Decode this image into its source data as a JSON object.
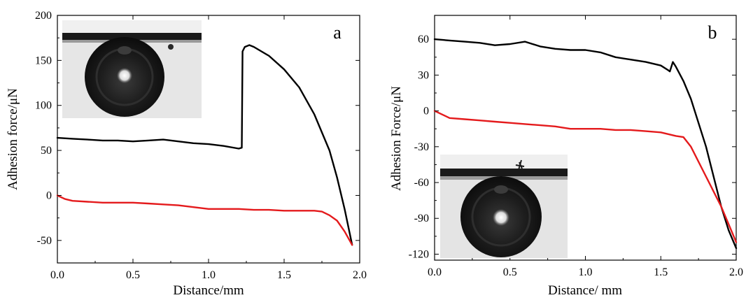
{
  "chart_data": [
    {
      "type": "line",
      "panel_label": "a",
      "xlabel": "Distance/mm",
      "ylabel": "Adhesion force/μN",
      "xlim": [
        0.0,
        2.0
      ],
      "ylim": [
        -75,
        200
      ],
      "xticks": [
        0.0,
        0.5,
        1.0,
        1.5,
        2.0
      ],
      "xtick_labels": [
        "0.0",
        "0.5",
        "1.0",
        "1.5",
        "2.0"
      ],
      "yticks": [
        -50,
        0,
        50,
        100,
        150,
        200
      ],
      "ytick_labels": [
        "-50",
        "0",
        "50",
        "100",
        "150",
        "200"
      ],
      "series": [
        {
          "color": "#000000",
          "x": [
            0.0,
            0.1,
            0.2,
            0.3,
            0.4,
            0.5,
            0.6,
            0.7,
            0.8,
            0.9,
            1.0,
            1.1,
            1.2,
            1.22,
            1.225,
            1.24,
            1.27,
            1.3,
            1.4,
            1.5,
            1.6,
            1.7,
            1.8,
            1.85,
            1.9,
            1.95
          ],
          "y": [
            64,
            63,
            62,
            61,
            61,
            60,
            61,
            62,
            60,
            58,
            57,
            55,
            52,
            53,
            160,
            165,
            167,
            165,
            155,
            140,
            120,
            90,
            50,
            20,
            -15,
            -55
          ]
        },
        {
          "color": "#e41a1c",
          "x": [
            0.0,
            0.05,
            0.1,
            0.2,
            0.3,
            0.4,
            0.5,
            0.6,
            0.7,
            0.8,
            0.9,
            1.0,
            1.1,
            1.2,
            1.3,
            1.4,
            1.5,
            1.6,
            1.7,
            1.75,
            1.8,
            1.85,
            1.9,
            1.95
          ],
          "y": [
            0,
            -4,
            -6,
            -7,
            -8,
            -8,
            -8,
            -9,
            -10,
            -11,
            -13,
            -15,
            -15,
            -15,
            -16,
            -16,
            -17,
            -17,
            -17,
            -18,
            -22,
            -28,
            -40,
            -55
          ]
        }
      ]
    },
    {
      "type": "line",
      "panel_label": "b",
      "xlabel": "Distance/ mm",
      "ylabel": "Adhesion Force/μN",
      "xlim": [
        0.0,
        2.0
      ],
      "ylim": [
        -125,
        80
      ],
      "xticks": [
        0.0,
        0.5,
        1.0,
        1.5,
        2.0
      ],
      "xtick_labels": [
        "0.0",
        "0.5",
        "1.0",
        "1.5",
        "2.0"
      ],
      "yticks": [
        -120,
        -90,
        -60,
        -30,
        0,
        30,
        60
      ],
      "ytick_labels": [
        "-120",
        "-90",
        "-60",
        "-30",
        "0",
        "30",
        "60"
      ],
      "series": [
        {
          "color": "#000000",
          "x": [
            0.0,
            0.1,
            0.2,
            0.3,
            0.4,
            0.5,
            0.6,
            0.7,
            0.8,
            0.9,
            1.0,
            1.1,
            1.2,
            1.3,
            1.4,
            1.5,
            1.55,
            1.56,
            1.58,
            1.6,
            1.65,
            1.7,
            1.8,
            1.9,
            1.95,
            2.0
          ],
          "y": [
            60,
            59,
            58,
            57,
            55,
            56,
            58,
            54,
            52,
            51,
            51,
            49,
            45,
            43,
            41,
            38,
            34,
            33,
            41,
            37,
            25,
            10,
            -30,
            -80,
            -100,
            -115
          ]
        },
        {
          "color": "#e41a1c",
          "x": [
            0.0,
            0.05,
            0.1,
            0.2,
            0.3,
            0.4,
            0.5,
            0.6,
            0.7,
            0.8,
            0.9,
            1.0,
            1.1,
            1.2,
            1.3,
            1.4,
            1.5,
            1.6,
            1.65,
            1.7,
            1.8,
            1.9,
            2.0
          ],
          "y": [
            0,
            -3,
            -6,
            -7,
            -8,
            -9,
            -10,
            -11,
            -12,
            -13,
            -15,
            -15,
            -15,
            -16,
            -16,
            -17,
            -18,
            -21,
            -22,
            -30,
            -55,
            -80,
            -110
          ]
        }
      ]
    }
  ],
  "insets": [
    {
      "name": "droplet-photo-a"
    },
    {
      "name": "droplet-photo-b"
    }
  ]
}
